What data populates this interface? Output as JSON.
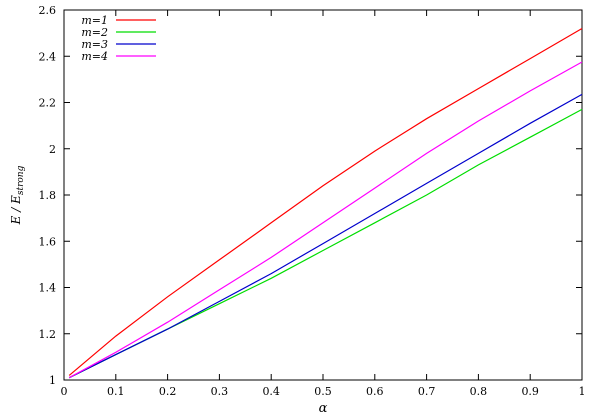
{
  "chart_data": {
    "type": "line",
    "xlabel": "α",
    "ylabel": "E / E",
    "ylabel_sub": "strong",
    "xlim": [
      0,
      1
    ],
    "ylim": [
      1,
      2.6
    ],
    "x_ticks": [
      "0",
      "0.1",
      "0.2",
      "0.3",
      "0.4",
      "0.5",
      "0.6",
      "0.7",
      "0.8",
      "0.9",
      "1"
    ],
    "y_ticks": [
      "1",
      "1.2",
      "1.4",
      "1.6",
      "1.8",
      "2",
      "2.2",
      "2.4",
      "2.6"
    ],
    "grid": false,
    "legend_position": "top-left",
    "x": [
      0.01,
      0.1,
      0.2,
      0.3,
      0.4,
      0.5,
      0.6,
      0.7,
      0.8,
      0.9,
      1.0
    ],
    "series": [
      {
        "name": "m=1",
        "color": "#ff0000",
        "values": [
          1.02,
          1.19,
          1.36,
          1.52,
          1.68,
          1.84,
          1.99,
          2.13,
          2.26,
          2.39,
          2.52
        ]
      },
      {
        "name": "m=2",
        "color": "#00dd00",
        "values": [
          1.01,
          1.11,
          1.22,
          1.33,
          1.44,
          1.56,
          1.68,
          1.8,
          1.93,
          2.05,
          2.17
        ]
      },
      {
        "name": "m=3",
        "color": "#0000cc",
        "values": [
          1.01,
          1.11,
          1.22,
          1.34,
          1.46,
          1.59,
          1.72,
          1.85,
          1.98,
          2.11,
          2.235
        ]
      },
      {
        "name": "m=4",
        "color": "#ff00ff",
        "values": [
          1.01,
          1.12,
          1.25,
          1.39,
          1.53,
          1.68,
          1.83,
          1.98,
          2.12,
          2.25,
          2.375
        ]
      }
    ]
  }
}
